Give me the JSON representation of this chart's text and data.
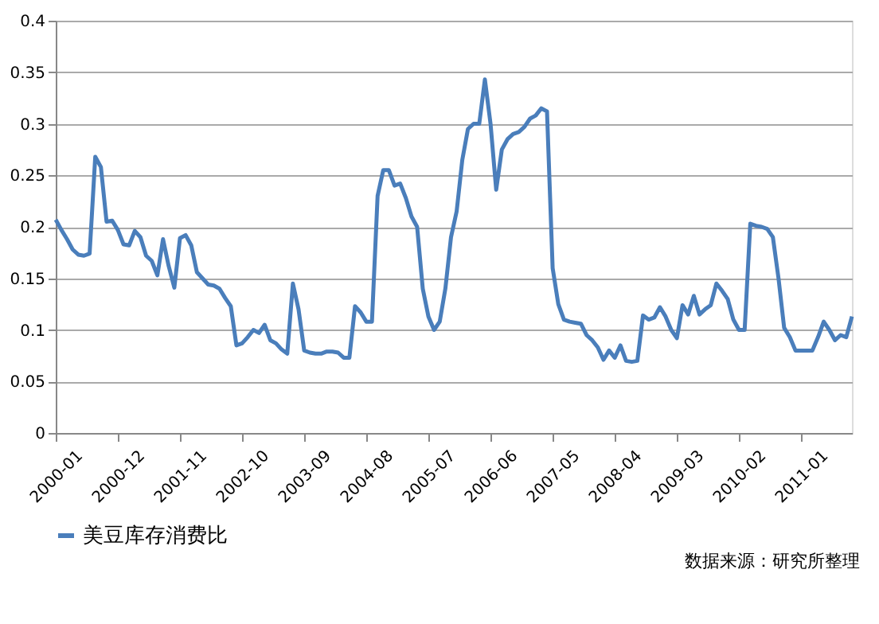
{
  "chart_data": {
    "type": "line",
    "categories": [
      "2000-01",
      null,
      null,
      null,
      null,
      null,
      null,
      null,
      null,
      null,
      null,
      "2000-12",
      null,
      null,
      null,
      null,
      null,
      null,
      null,
      null,
      null,
      null,
      "2001-11",
      null,
      null,
      null,
      null,
      null,
      null,
      null,
      null,
      null,
      null,
      "2002-10",
      null,
      null,
      null,
      null,
      null,
      null,
      null,
      null,
      null,
      null,
      "2003-09",
      null,
      null,
      null,
      null,
      null,
      null,
      null,
      null,
      null,
      null,
      "2004-08",
      null,
      null,
      null,
      null,
      null,
      null,
      null,
      null,
      null,
      null,
      "2005-07",
      null,
      null,
      null,
      null,
      null,
      null,
      null,
      null,
      null,
      null,
      "2006-06",
      null,
      null,
      null,
      null,
      null,
      null,
      null,
      null,
      null,
      null,
      "2007-05",
      null,
      null,
      null,
      null,
      null,
      null,
      null,
      null,
      null,
      null,
      "2008-04",
      null,
      null,
      null,
      null,
      null,
      null,
      null,
      null,
      null,
      null,
      "2009-03",
      null,
      null,
      null,
      null,
      null,
      null,
      null,
      null,
      null,
      null,
      "2010-02",
      null,
      null,
      null,
      null,
      null,
      null,
      null,
      null,
      null,
      null,
      "2011-01",
      null,
      null,
      null,
      null,
      null,
      null,
      null,
      null,
      null
    ],
    "series": [
      {
        "name": "美豆库存消费比",
        "color": "#4a7ebb",
        "values": [
          0.207,
          0.197,
          0.188,
          0.178,
          0.173,
          0.172,
          0.174,
          0.268,
          0.258,
          0.205,
          0.206,
          0.197,
          0.183,
          0.182,
          0.196,
          0.19,
          0.172,
          0.167,
          0.153,
          0.188,
          0.162,
          0.141,
          0.189,
          0.192,
          0.182,
          0.156,
          0.15,
          0.144,
          0.143,
          0.14,
          0.131,
          0.123,
          0.085,
          0.087,
          0.093,
          0.1,
          0.097,
          0.105,
          0.09,
          0.087,
          0.081,
          0.077,
          0.145,
          0.12,
          0.08,
          0.078,
          0.077,
          0.077,
          0.079,
          0.079,
          0.078,
          0.073,
          0.073,
          0.123,
          0.117,
          0.108,
          0.108,
          0.23,
          0.255,
          0.255,
          0.24,
          0.242,
          0.228,
          0.21,
          0.2,
          0.14,
          0.113,
          0.1,
          0.108,
          0.14,
          0.19,
          0.215,
          0.265,
          0.295,
          0.3,
          0.3,
          0.343,
          0.3,
          0.236,
          0.275,
          0.285,
          0.29,
          0.292,
          0.297,
          0.305,
          0.308,
          0.315,
          0.312,
          0.16,
          0.125,
          0.11,
          0.108,
          0.107,
          0.106,
          0.095,
          0.09,
          0.083,
          0.071,
          0.08,
          0.073,
          0.085,
          0.07,
          0.069,
          0.07,
          0.114,
          0.11,
          0.112,
          0.122,
          0.113,
          0.1,
          0.092,
          0.124,
          0.115,
          0.133,
          0.115,
          0.12,
          0.124,
          0.145,
          0.138,
          0.13,
          0.11,
          0.1,
          0.1,
          0.203,
          0.201,
          0.2,
          0.198,
          0.19,
          0.15,
          0.102,
          0.093,
          0.08,
          0.08,
          0.08,
          0.08,
          0.093,
          0.108,
          0.1,
          0.09,
          0.095,
          0.093,
          0.113
        ]
      }
    ],
    "ylim": [
      0,
      0.4
    ],
    "yticks": [
      0,
      0.05,
      0.1,
      0.15,
      0.2,
      0.25,
      0.3,
      0.35,
      0.4
    ],
    "grid": "y",
    "legend": "bottom",
    "line_style": "solid",
    "marker": "none",
    "annotations": [
      "数据来源：研究所整理"
    ]
  }
}
